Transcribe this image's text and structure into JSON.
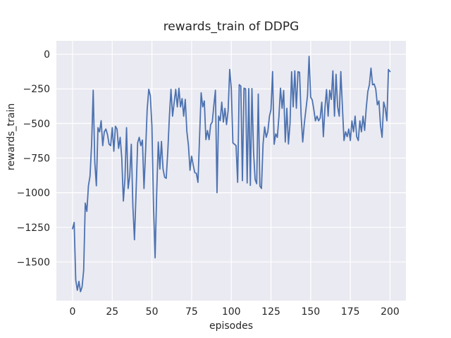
{
  "chart_data": {
    "type": "line",
    "title": "rewards_train of DDPG",
    "xlabel": "episodes",
    "ylabel": "rewards_train",
    "grid": true,
    "legend": "none",
    "style": {
      "figure_bg": "#ffffff",
      "plot_bg": "#eaeaf2",
      "grid_color": "#ffffff",
      "line_color": "#4c72b0",
      "text_color": "#262626",
      "line_width": 1.8
    },
    "xlim": [
      -10.2,
      210.0
    ],
    "ylim": [
      -1780,
      97
    ],
    "x_ticks": [
      {
        "label": "0",
        "value": 0
      },
      {
        "label": "25",
        "value": 25
      },
      {
        "label": "50",
        "value": 50
      },
      {
        "label": "75",
        "value": 75
      },
      {
        "label": "100",
        "value": 100
      },
      {
        "label": "125",
        "value": 125
      },
      {
        "label": "150",
        "value": 150
      },
      {
        "label": "175",
        "value": 175
      },
      {
        "label": "200",
        "value": 200
      }
    ],
    "y_ticks": [
      {
        "label": "0",
        "value": 0
      },
      {
        "label": "−250",
        "value": -250
      },
      {
        "label": "−500",
        "value": -500
      },
      {
        "label": "−750",
        "value": -750
      },
      {
        "label": "−1000",
        "value": -1000
      },
      {
        "label": "−1250",
        "value": -1250
      },
      {
        "label": "−1500",
        "value": -1500
      }
    ],
    "series": [
      {
        "name": "rewards_train",
        "x_start": 0,
        "x_step": 1,
        "values": [
          -1260,
          -1215,
          -1630,
          -1705,
          -1640,
          -1715,
          -1680,
          -1560,
          -1075,
          -1135,
          -950,
          -880,
          -650,
          -260,
          -780,
          -950,
          -530,
          -560,
          -480,
          -660,
          -560,
          -540,
          -580,
          -650,
          -660,
          -530,
          -700,
          -520,
          -540,
          -680,
          -600,
          -750,
          -1060,
          -900,
          -530,
          -970,
          -880,
          -650,
          -1100,
          -1340,
          -1000,
          -640,
          -600,
          -660,
          -620,
          -970,
          -700,
          -400,
          -253,
          -300,
          -520,
          -1100,
          -1470,
          -1000,
          -634,
          -829,
          -630,
          -829,
          -888,
          -896,
          -700,
          -450,
          -253,
          -447,
          -350,
          -253,
          -380,
          -245,
          -380,
          -320,
          -447,
          -326,
          -558,
          -659,
          -838,
          -736,
          -800,
          -855,
          -860,
          -925,
          -600,
          -278,
          -380,
          -337,
          -617,
          -551,
          -617,
          -508,
          -490,
          -370,
          -260,
          -1000,
          -447,
          -480,
          -346,
          -490,
          -390,
          -508,
          -407,
          -110,
          -250,
          -640,
          -650,
          -660,
          -925,
          -220,
          -230,
          -913,
          -245,
          -250,
          -930,
          -248,
          -947,
          -248,
          -700,
          -905,
          -935,
          -287,
          -952,
          -969,
          -650,
          -525,
          -600,
          -560,
          -450,
          -400,
          -125,
          -650,
          -575,
          -600,
          -450,
          -245,
          -390,
          -262,
          -634,
          -390,
          -648,
          -500,
          -126,
          -380,
          -120,
          -390,
          -126,
          -130,
          -447,
          -634,
          -500,
          -400,
          -300,
          -15,
          -310,
          -330,
          -400,
          -481,
          -447,
          -481,
          -460,
          -346,
          -595,
          -390,
          -255,
          -447,
          -260,
          -326,
          -120,
          -447,
          -145,
          -380,
          -447,
          -125,
          -380,
          -623,
          -560,
          -595,
          -540,
          -623,
          -481,
          -560,
          -447,
          -595,
          -623,
          -481,
          -560,
          -447,
          -550,
          -390,
          -270,
          -220,
          -100,
          -220,
          -215,
          -250,
          -365,
          -337,
          -515,
          -600,
          -345,
          -390,
          -480,
          -110,
          -125
        ]
      }
    ]
  }
}
